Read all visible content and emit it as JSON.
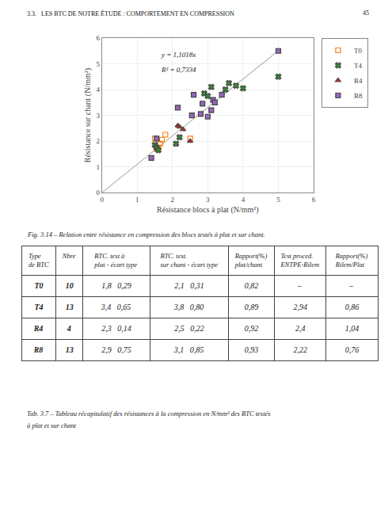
{
  "page_header": "3.3.   LES BTC DE NOTRE ÉTUDE : COMPORTEMENT EN COMPRESSION",
  "page_number": "45",
  "chart_data": [
    {
      "type": "scatter",
      "caption": "Fig. 3.14 – Relation entre résistance en compression des blocs testés à plat et sur chant.",
      "x_label": "Résistance blocs à plat (N/mm²)",
      "y_label": "Résistance sur chant (N/mm²)",
      "xlim": [
        0,
        6
      ],
      "ylim": [
        0,
        6
      ],
      "xticks": [
        0,
        1,
        2,
        3,
        4,
        5,
        6
      ],
      "yticks": [
        0,
        1,
        2,
        3,
        4,
        5,
        6
      ],
      "grid": true,
      "legend": "right",
      "annotations": [
        "y = 1,1018x",
        "R² = 0,7334"
      ],
      "series": [
        {
          "type": "line",
          "color": "#bbbbbb",
          "x": [
            0,
            5
          ],
          "values": [
            0,
            5.509
          ]
        },
        {
          "name": "T0",
          "marker": "square-open",
          "x": [
            1.5,
            1.6,
            1.65,
            1.7,
            1.8,
            2.5,
            1.55
          ],
          "values": [
            2.1,
            1.75,
            1.9,
            2.05,
            2.25,
            2.1,
            1.7
          ]
        },
        {
          "name": "T4",
          "marker": "x",
          "x": [
            1.5,
            1.55,
            1.6,
            2.1,
            2.2,
            2.9,
            3.0,
            3.1,
            3.5,
            3.6,
            3.8,
            4.0,
            5.0
          ],
          "values": [
            1.85,
            1.75,
            1.65,
            1.9,
            2.15,
            3.85,
            3.75,
            4.1,
            4.0,
            4.25,
            4.15,
            4.05,
            4.5
          ]
        },
        {
          "name": "R4",
          "marker": "triangle-up",
          "x": [
            2.15,
            2.2,
            2.3,
            2.5
          ],
          "values": [
            2.6,
            2.55,
            2.45,
            2.0
          ]
        },
        {
          "name": "R8",
          "marker": "square",
          "x": [
            1.4,
            1.55,
            2.15,
            2.55,
            2.6,
            2.8,
            2.85,
            3.0,
            3.1,
            3.15,
            3.2,
            3.4,
            5.0
          ],
          "values": [
            1.35,
            2.1,
            3.3,
            3.0,
            3.8,
            3.05,
            3.45,
            2.95,
            3.2,
            3.6,
            3.5,
            3.8,
            5.5
          ]
        }
      ]
    },
    {
      "type": "table",
      "caption": [
        "Tab. 3.7 – Tableau récapitulatif des résistances à la compression en N/mm² des BTC testés",
        "à plat et sur chant"
      ],
      "header": [
        [
          "Type",
          null,
          "BTC. test à",
          "BTC. test.",
          "Rapport(%)",
          "Test proced.",
          "Rapport(%)"
        ],
        [
          "de BTC",
          "Nbre",
          "plat - écart type",
          "sur chant - écart type",
          "plat/chant",
          "ENTPE-Rilem",
          "Rilem/Plat"
        ]
      ],
      "rows": [
        [
          "T0",
          "10",
          "1,8   0,29",
          "2,1   0,31",
          "0,82",
          "–",
          "–"
        ],
        [
          "T4",
          "13",
          "3,4   0,65",
          "3,8   0,80",
          "0,89",
          "2,94",
          "0,86"
        ],
        [
          "R4",
          "4",
          "2,3   0,14",
          "2,5   0,22",
          "0,92",
          "2,4",
          "1,04"
        ],
        [
          "R8",
          "13",
          "2,9   0,75",
          "3,1   0,85",
          "0,93",
          "2,22",
          "0,76"
        ]
      ]
    }
  ]
}
